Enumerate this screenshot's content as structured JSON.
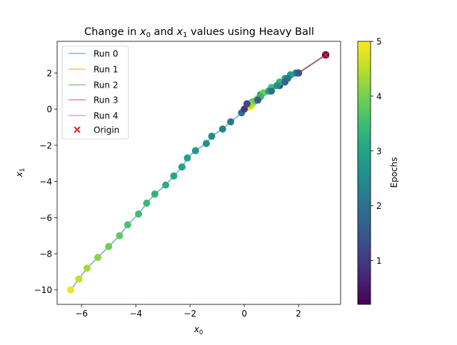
{
  "chart_data": {
    "type": "scatter",
    "title_prefix": "Change in ",
    "title_var_x": "x",
    "title_var_x_sub": "0",
    "title_and": " and ",
    "title_var_y": "x",
    "title_var_y_sub": "1",
    "title_suffix": " values using Heavy Ball",
    "xlabel": {
      "base": "x",
      "sub": "0"
    },
    "ylabel": {
      "base": "x",
      "sub": "1"
    },
    "xlim": [
      -6.9,
      3.55
    ],
    "ylim": [
      -10.8,
      3.75
    ],
    "xticks": [
      -6,
      -4,
      -2,
      0,
      2
    ],
    "xtick_labels": [
      "−6",
      "−4",
      "−2",
      "0",
      "2"
    ],
    "yticks": [
      -10,
      -8,
      -6,
      -4,
      -2,
      0,
      2
    ],
    "ytick_labels": [
      "−10",
      "−8",
      "−6",
      "−4",
      "−2",
      "0",
      "2"
    ],
    "colorbar": {
      "label": "Epochs",
      "range": [
        0.2,
        5
      ],
      "ticks": [
        1,
        2,
        3,
        4,
        5
      ],
      "tick_labels": [
        "1",
        "2",
        "3",
        "4",
        "5"
      ],
      "colormap": "viridis"
    },
    "origin": {
      "label": "Origin",
      "x": 3,
      "y": 3,
      "color": "#d62728"
    },
    "legend_placement": "upper-left",
    "series": [
      {
        "name": "Run 0",
        "color": "#1f77b4",
        "points": [
          [
            3.0,
            3.0,
            0.2
          ],
          [
            2.0,
            2.0,
            1.0
          ],
          [
            1.3,
            1.3,
            1.3
          ],
          [
            0.6,
            0.7,
            1.6
          ],
          [
            -0.1,
            -0.2,
            1.9
          ],
          [
            -0.5,
            -0.7,
            2.1
          ],
          [
            -0.8,
            -1.1,
            2.3
          ],
          [
            -1.2,
            -1.5,
            2.5
          ],
          [
            -1.4,
            -1.9,
            2.6
          ],
          [
            -1.8,
            -2.3,
            2.75
          ],
          [
            -2.1,
            -2.7,
            2.9
          ],
          [
            -2.3,
            -3.2,
            3.0
          ],
          [
            -2.6,
            -3.7,
            3.1
          ],
          [
            -2.9,
            -4.2,
            3.2
          ],
          [
            -3.3,
            -4.7,
            3.3
          ],
          [
            -3.6,
            -5.2,
            3.4
          ],
          [
            -3.9,
            -5.8,
            3.5
          ],
          [
            -4.3,
            -6.4,
            3.65
          ],
          [
            -4.6,
            -7.0,
            3.8
          ],
          [
            -5.0,
            -7.6,
            3.95
          ],
          [
            -5.4,
            -8.2,
            4.15
          ],
          [
            -5.8,
            -8.8,
            4.35
          ],
          [
            -6.1,
            -9.4,
            4.6
          ],
          [
            -6.4,
            -10.0,
            4.85
          ]
        ]
      },
      {
        "name": "Run 1",
        "color": "#ff7f0e",
        "points": [
          [
            3.0,
            3.0,
            0.2
          ],
          [
            2.0,
            2.0,
            0.6
          ],
          [
            1.5,
            1.6,
            1.2
          ],
          [
            1.0,
            1.2,
            2.0
          ],
          [
            0.6,
            0.8,
            2.8
          ],
          [
            0.3,
            0.4,
            3.6
          ],
          [
            0.2,
            0.2,
            4.4
          ],
          [
            0.25,
            0.15,
            5.0
          ]
        ]
      },
      {
        "name": "Run 2",
        "color": "#2ca02c",
        "points": [
          [
            3.0,
            3.0,
            0.2
          ],
          [
            2.0,
            2.0,
            1.0
          ],
          [
            1.9,
            2.0,
            2.3
          ],
          [
            1.7,
            1.9,
            2.9
          ],
          [
            1.5,
            1.7,
            3.1
          ],
          [
            1.3,
            1.5,
            3.3
          ],
          [
            1.0,
            1.2,
            3.6
          ],
          [
            0.7,
            0.9,
            3.9
          ],
          [
            0.5,
            0.6,
            4.2
          ],
          [
            0.3,
            0.3,
            4.6
          ],
          [
            0.15,
            0.1,
            4.9
          ]
        ]
      },
      {
        "name": "Run 3",
        "color": "#d62728",
        "points": [
          [
            3.0,
            3.0,
            0.2
          ],
          [
            2.0,
            2.0,
            1.6
          ],
          [
            1.6,
            1.7,
            2.1
          ],
          [
            1.2,
            1.3,
            2.6
          ],
          [
            0.9,
            1.0,
            3.0
          ],
          [
            0.6,
            0.7,
            3.4
          ],
          [
            0.4,
            0.45,
            3.8
          ],
          [
            0.2,
            0.25,
            4.3
          ]
        ]
      },
      {
        "name": "Run 4",
        "color": "#9467bd",
        "points": [
          [
            3.0,
            3.0,
            0.2
          ],
          [
            2.0,
            2.0,
            1.5
          ],
          [
            1.5,
            1.5,
            1.8
          ],
          [
            1.0,
            1.0,
            2.0
          ],
          [
            0.5,
            0.5,
            1.6
          ],
          [
            0.1,
            0.3,
            1.2
          ],
          [
            0.0,
            0.0,
            1.0
          ]
        ]
      }
    ]
  }
}
